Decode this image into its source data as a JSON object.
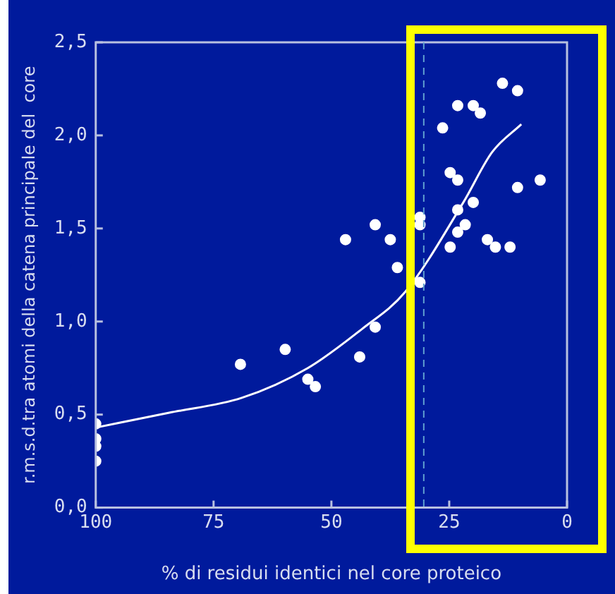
{
  "chart_data": {
    "type": "scatter",
    "xlabel": "% di residui identici nel core proteico",
    "ylabel": "r.m.s.d.tra atomi della catena principale del  core",
    "xlim": [
      100,
      0
    ],
    "xticks": [
      100,
      75,
      50,
      25,
      0
    ],
    "ylim": [
      0,
      2.5
    ],
    "yticks": [
      {
        "value": 0,
        "label": "0,0"
      },
      {
        "value": 0.5,
        "label": "0,5"
      },
      {
        "value": 1,
        "label": "1,0"
      },
      {
        "value": 1.5,
        "label": "1,5"
      },
      {
        "value": 2,
        "label": "2,0"
      },
      {
        "value": 2.5,
        "label": "2,5"
      }
    ],
    "grid": false,
    "legend": false,
    "marker": "circle",
    "series": [
      {
        "color": "#ffffff",
        "x": [
          100,
          100,
          100,
          100,
          69.3,
          59.8,
          55,
          53.4,
          47,
          44,
          40.7,
          37.5,
          36,
          40.7,
          31.2,
          31.2,
          31.2,
          26.4,
          23.2,
          19.9,
          18.4,
          13.7,
          10.5,
          24.8,
          23.2,
          10.5,
          5.7,
          19.9,
          23.2,
          21.6,
          23.2,
          24.8,
          16.9,
          15.2,
          12.1
        ],
        "values": [
          0.45,
          0.37,
          0.33,
          0.25,
          0.77,
          0.85,
          0.69,
          0.65,
          1.44,
          0.81,
          1.52,
          1.44,
          1.29,
          0.97,
          1.56,
          1.52,
          1.21,
          2.04,
          2.16,
          2.16,
          2.12,
          2.28,
          2.24,
          1.8,
          1.76,
          1.72,
          1.76,
          1.64,
          1.6,
          1.52,
          1.48,
          1.4,
          1.44,
          1.4,
          1.4
        ]
      },
      {
        "type": "line",
        "color": "#ffffff",
        "marker": "none",
        "x": [
          100,
          84.4,
          69,
          55,
          43.5,
          34.3,
          22,
          15.9,
          9.7
        ],
        "values": [
          0.43,
          0.51,
          0.59,
          0.75,
          0.96,
          1.16,
          1.64,
          1.91,
          2.06
        ]
      }
    ],
    "ref_lines": [
      {
        "axis": "x",
        "value": 30.4,
        "color": "#5f9fd0",
        "line_style": "dashed"
      }
    ]
  }
}
